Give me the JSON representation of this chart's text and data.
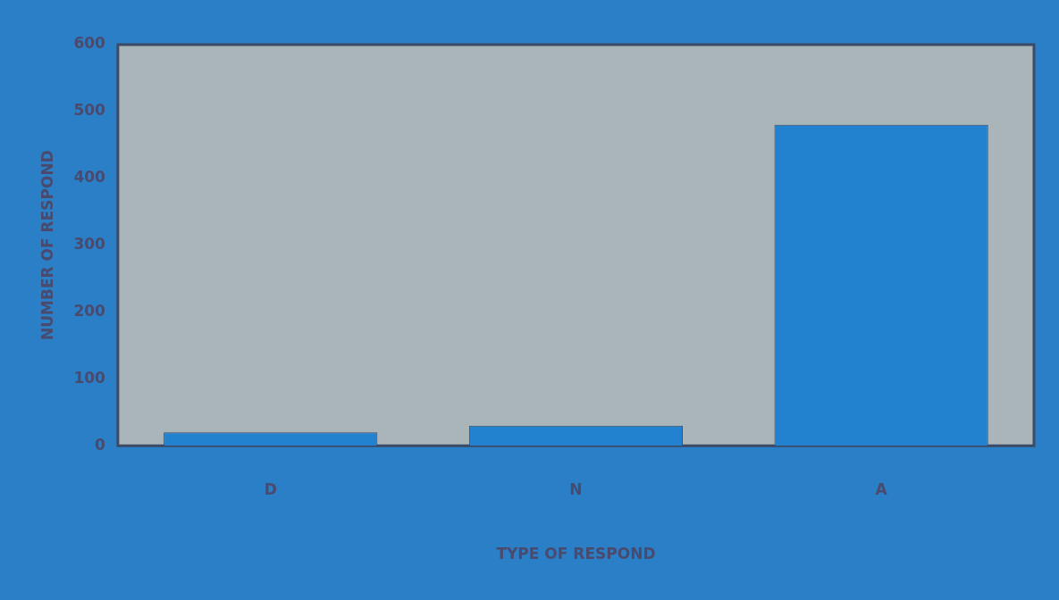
{
  "chart_data": {
    "type": "bar",
    "xlabel": "TYPE OF RESPOND",
    "ylabel": "NUMBER OF RESPOND",
    "categories": [
      "D",
      "N",
      "A"
    ],
    "values": [
      20,
      30,
      480
    ],
    "color": "#2382cf",
    "ylim": [
      0,
      600
    ],
    "yticks": [
      0,
      100,
      200,
      300,
      400,
      500,
      600
    ],
    "grid": false,
    "legend": false
  }
}
